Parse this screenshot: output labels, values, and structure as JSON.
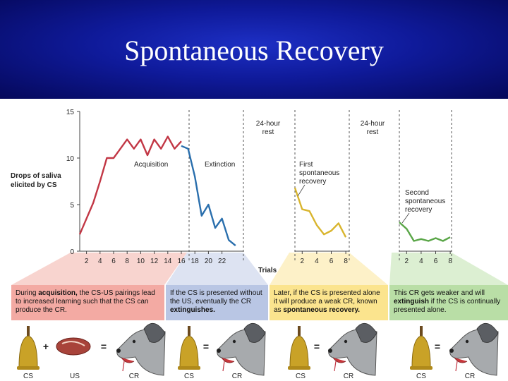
{
  "slide": {
    "title": "Spontaneous Recovery"
  },
  "chart_data": {
    "type": "line",
    "ylabel": [
      "Drops of saliva",
      "elicited by CS"
    ],
    "xlabel": "Trials",
    "ylim": [
      0,
      15
    ],
    "yticks": [
      0,
      5,
      10,
      15
    ],
    "segments": [
      {
        "name": "Acquisition",
        "color": "#c23745",
        "x": [
          1,
          2,
          3,
          4,
          5,
          6,
          7,
          8,
          9,
          10,
          11,
          12,
          13,
          14,
          15,
          16
        ],
        "values": [
          1.8,
          3.5,
          5.2,
          7.5,
          10.0,
          10.0,
          11.0,
          12.0,
          11.0,
          12.0,
          10.3,
          12.0,
          11.0,
          12.3,
          11.0,
          11.8
        ]
      },
      {
        "name": "Extinction",
        "color": "#2a6fad",
        "x": [
          16,
          17,
          18,
          19,
          20,
          21,
          22,
          23,
          24
        ],
        "values": [
          11.3,
          11.0,
          8.0,
          3.8,
          5.0,
          2.5,
          3.5,
          1.2,
          0.6
        ]
      },
      {
        "name": "First spontaneous recovery",
        "color": "#d9b52e",
        "x": [
          1,
          2,
          3,
          4,
          5,
          6,
          7,
          8
        ],
        "values": [
          6.8,
          4.5,
          4.3,
          2.8,
          1.8,
          2.2,
          3.0,
          1.5
        ]
      },
      {
        "name": "Second spontaneous recovery",
        "color": "#5aa648",
        "x": [
          1,
          2,
          3,
          4,
          5,
          6,
          7,
          8
        ],
        "values": [
          3.1,
          2.4,
          1.1,
          1.3,
          1.1,
          1.4,
          1.1,
          1.5
        ]
      }
    ],
    "xticks_main": [
      2,
      4,
      6,
      8,
      10,
      12,
      14,
      16,
      18,
      20,
      22
    ],
    "xticks_recovery": [
      2,
      4,
      6,
      8
    ],
    "annotations": {
      "acquisition": "Acquisition",
      "extinction": "Extinction",
      "first_recovery": [
        "First",
        "spontaneous",
        "recovery"
      ],
      "second_recovery": [
        "Second",
        "spontaneous",
        "recovery"
      ],
      "rest": [
        "24-hour",
        "rest"
      ]
    }
  },
  "panels": [
    {
      "parts": [
        {
          "t": "During ",
          "b": false
        },
        {
          "t": "acquisition,",
          "b": true
        },
        {
          "t": " the CS-US pairings lead to increased learning such that the CS can produce the CR.",
          "b": false
        }
      ]
    },
    {
      "parts": [
        {
          "t": "If the CS is presented without the US, eventually the CR ",
          "b": false
        },
        {
          "t": "extinguishes.",
          "b": true
        }
      ]
    },
    {
      "parts": [
        {
          "t": "Later, if the CS is presented alone it will produce a weak CR, known as ",
          "b": false
        },
        {
          "t": "spontaneous recovery.",
          "b": true
        }
      ]
    },
    {
      "parts": [
        {
          "t": "This CR gets weaker and will ",
          "b": false
        },
        {
          "t": "extinguish",
          "b": true
        },
        {
          "t": " if the CS is continually presented alone.",
          "b": false
        }
      ]
    }
  ],
  "illustrations": {
    "captions": [
      "CS",
      "US",
      "CR",
      "CS",
      "CR",
      "CS",
      "CR",
      "CS",
      "CR"
    ],
    "plus": "+",
    "equals": "="
  },
  "colors": {
    "acquisition": "#c23745",
    "extinction": "#2a6fad",
    "recovery1": "#d9b52e",
    "recovery2": "#5aa648",
    "title_bg": "#0f1a9a"
  }
}
